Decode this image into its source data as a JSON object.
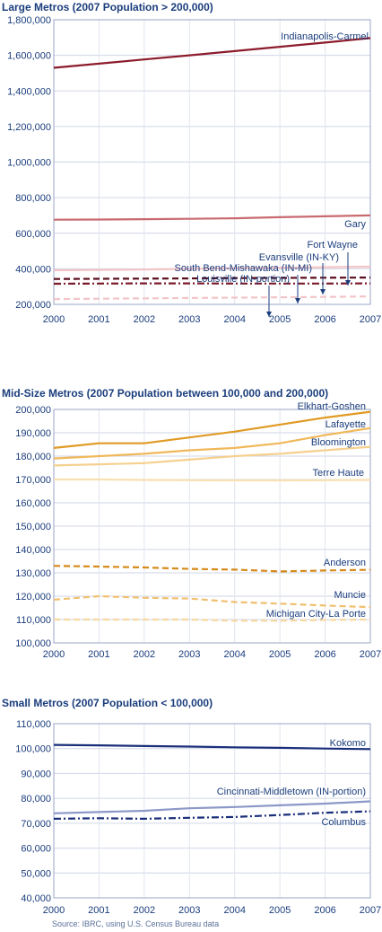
{
  "source_note": "Source: IBRC, using U.S. Census Bureau data",
  "chart_data": [
    {
      "type": "line",
      "title": "Large Metros (2007 Population > 200,000)",
      "x": [
        "2000",
        "2001",
        "2002",
        "2003",
        "2004",
        "2005",
        "2006",
        "2007"
      ],
      "ylim": [
        200000,
        1800000
      ],
      "yticks": [
        200000,
        400000,
        600000,
        800000,
        1000000,
        1200000,
        1400000,
        1600000,
        1800000
      ],
      "ytick_labels": [
        "200,000",
        "400,000",
        "600,000",
        "800,000",
        "1,000,000",
        "1,200,000",
        "1,400,000",
        "1,600,000",
        "1,800,000"
      ],
      "grid": true,
      "series": [
        {
          "name": "Indianapolis-Carmel",
          "color": "#8c1c2c",
          "dash": "solid",
          "values": [
            1530000,
            1553000,
            1577000,
            1600000,
            1624000,
            1648000,
            1672000,
            1697000
          ]
        },
        {
          "name": "Gary",
          "color": "#c96a70",
          "dash": "solid",
          "values": [
            676000,
            677000,
            679000,
            681000,
            684000,
            690000,
            695000,
            700000
          ]
        },
        {
          "name": "Fort Wayne",
          "color": "#f2c4c7",
          "dash": "solid",
          "values": [
            392000,
            394000,
            396000,
            400000,
            403000,
            406000,
            409000,
            412000
          ]
        },
        {
          "name": "South Bend-Mishawaka (IN-MI)",
          "color": "#7a1a2a",
          "dash": "dashdot",
          "values": [
            316000,
            317000,
            318000,
            318000,
            317000,
            317000,
            317000,
            318000
          ]
        },
        {
          "name": "Evansville (IN-KY)",
          "color": "#5a0f1c",
          "dash": "dash",
          "values": [
            343000,
            344000,
            345000,
            346000,
            348000,
            349000,
            350000,
            351000
          ]
        },
        {
          "name": "Louisville (IN-portion)",
          "color": "#f2c4c7",
          "dash": "dash",
          "values": [
            230000,
            232000,
            234000,
            236000,
            238000,
            240000,
            242000,
            245000
          ]
        }
      ],
      "annotations": [
        "Indianapolis-Carmel",
        "Gary",
        "Fort Wayne",
        "Evansville (IN-KY)",
        "South Bend-Mishawaka (IN-MI)",
        "Louisville (IN-portion)"
      ]
    },
    {
      "type": "line",
      "title": "Mid-Size Metros (2007 Population between 100,000 and 200,000)",
      "x": [
        "2000",
        "2001",
        "2002",
        "2003",
        "2004",
        "2005",
        "2006",
        "2007"
      ],
      "ylim": [
        100000,
        200000
      ],
      "yticks": [
        100000,
        110000,
        120000,
        130000,
        140000,
        150000,
        160000,
        170000,
        180000,
        190000,
        200000
      ],
      "ytick_labels": [
        "100,000",
        "110,000",
        "120,000",
        "130,000",
        "140,000",
        "150,000",
        "160,000",
        "170,000",
        "180,000",
        "190,000",
        "200,000"
      ],
      "grid": true,
      "series": [
        {
          "name": "Elkhart-Goshen",
          "color": "#e09a24",
          "dash": "solid",
          "values": [
            183500,
            185500,
            185500,
            188000,
            190500,
            193500,
            196500,
            199000
          ]
        },
        {
          "name": "Lafayette",
          "color": "#f0b85a",
          "dash": "solid",
          "values": [
            179000,
            180000,
            181000,
            182500,
            183500,
            185500,
            189000,
            192000
          ]
        },
        {
          "name": "Bloomington",
          "color": "#f5d08e",
          "dash": "solid",
          "values": [
            176000,
            176500,
            177000,
            178500,
            180000,
            181000,
            182500,
            184000
          ]
        },
        {
          "name": "Terre Haute",
          "color": "#f8e0b0",
          "dash": "solid",
          "values": [
            170000,
            170000,
            169800,
            169700,
            169600,
            169600,
            169700,
            169800
          ]
        },
        {
          "name": "Anderson",
          "color": "#d68a1a",
          "dash": "dash",
          "values": [
            133000,
            132700,
            132300,
            131700,
            131400,
            130600,
            131000,
            131300
          ]
        },
        {
          "name": "Muncie",
          "color": "#f0c070",
          "dash": "dash",
          "values": [
            118500,
            120000,
            119300,
            119000,
            117500,
            116800,
            116000,
            115300
          ]
        },
        {
          "name": "Michigan City-La Porte",
          "color": "#f8d8a0",
          "dash": "dash",
          "values": [
            110000,
            110000,
            110000,
            110000,
            109500,
            109500,
            109800,
            110000
          ]
        }
      ],
      "annotations": [
        "Elkhart-Goshen",
        "Lafayette",
        "Bloomington",
        "Terre Haute",
        "Anderson",
        "Muncie",
        "Michigan City-La Porte"
      ]
    },
    {
      "type": "line",
      "title": "Small Metros (2007 Population < 100,000)",
      "x": [
        "2000",
        "2001",
        "2002",
        "2003",
        "2004",
        "2005",
        "2006",
        "2007"
      ],
      "ylim": [
        40000,
        110000
      ],
      "yticks": [
        40000,
        50000,
        60000,
        70000,
        80000,
        90000,
        100000,
        110000
      ],
      "ytick_labels": [
        "40,000",
        "50,000",
        "60,000",
        "70,000",
        "80,000",
        "90,000",
        "100,000",
        "110,000"
      ],
      "grid": true,
      "series": [
        {
          "name": "Kokomo",
          "color": "#1a2f7a",
          "dash": "solid",
          "values": [
            101500,
            101300,
            101000,
            100800,
            100500,
            100300,
            100000,
            99800
          ]
        },
        {
          "name": "Cincinnati-Middletown (IN-portion)",
          "color": "#8c98c8",
          "dash": "solid",
          "values": [
            74000,
            74500,
            75000,
            76000,
            76500,
            77200,
            77900,
            78800
          ]
        },
        {
          "name": "Columbus",
          "color": "#1a2f7a",
          "dash": "dashdot",
          "values": [
            71800,
            72000,
            71800,
            72200,
            72500,
            73300,
            74200,
            74800
          ]
        }
      ],
      "annotations": [
        "Kokomo",
        "Cincinnati-Middletown (IN-portion)",
        "Columbus"
      ]
    }
  ]
}
